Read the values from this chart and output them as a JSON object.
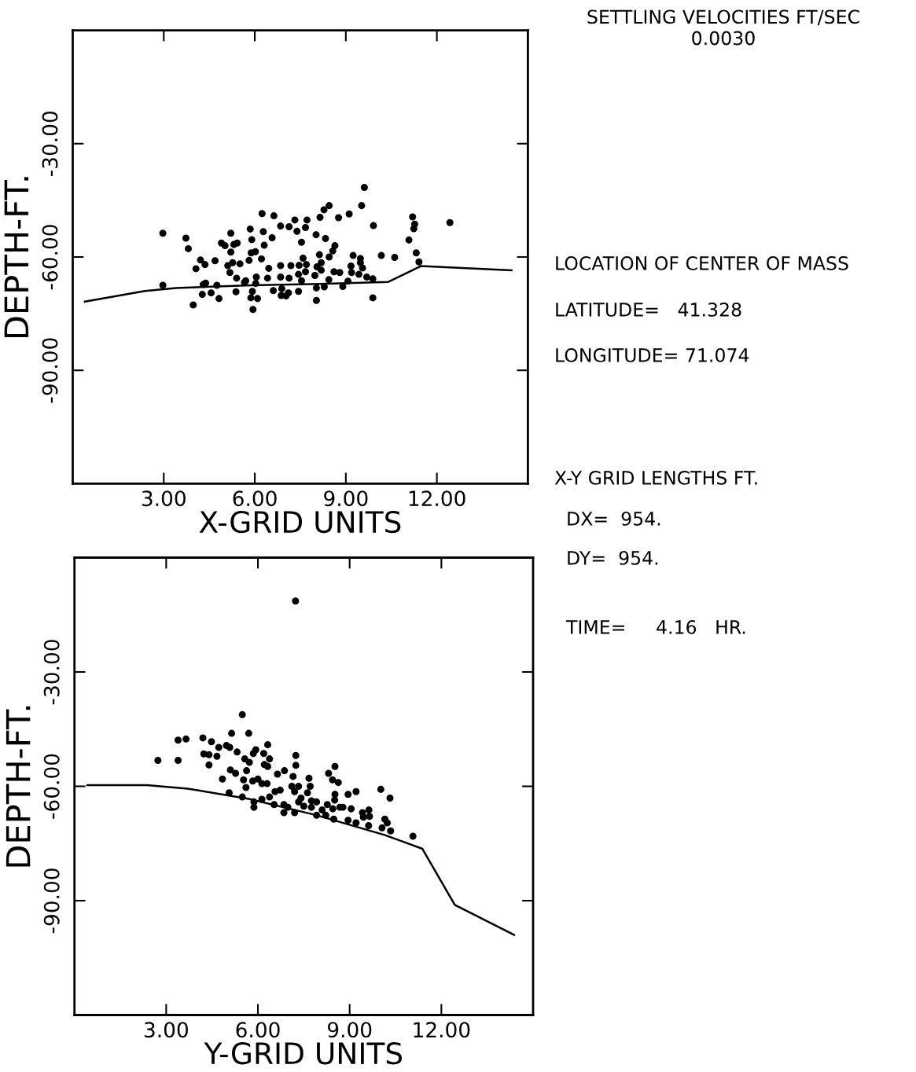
{
  "chart_data": [
    {
      "type": "scatter",
      "xlabel": "X-GRID UNITS",
      "ylabel": "DEPTH-FT.",
      "xlim": [
        0,
        15
      ],
      "ylim": [
        -120,
        0
      ],
      "xticks": [
        {
          "value": 3,
          "label": "3.00"
        },
        {
          "value": 6,
          "label": "6.00"
        },
        {
          "value": 9,
          "label": "9.00"
        },
        {
          "value": 12,
          "label": "12.00"
        }
      ],
      "yticks": [
        {
          "value": -90,
          "label": "-90.00"
        },
        {
          "value": -60,
          "label": "-60.00"
        },
        {
          "value": -30,
          "label": "-30.00"
        }
      ],
      "series": [
        {
          "type": "scatter",
          "marker": "circle",
          "color": "#000000",
          "x": [
            2.97,
            3.73,
            3.81,
            2.97,
            4.21,
            4.36,
            4.06,
            4.69,
            4.9,
            5.02,
            5.21,
            5.31,
            5.42,
            5.21,
            5.11,
            5.27,
            5.51,
            5.18,
            5.4,
            4.38,
            4.3,
            4.75,
            4.27,
            4.56,
            4.82,
            3.97,
            5.38,
            5.7,
            5.66,
            5.85,
            5.9,
            5.88,
            6.02,
            6.28,
            6.31,
            6.22,
            5.81,
            6.24,
            6.63,
            6.57,
            6.46,
            6.42,
            6.05,
            6.03,
            5.92,
            5.87,
            6.09,
            5.94,
            6.61,
            6.85,
            7.13,
            7.32,
            7.39,
            7.67,
            7.72,
            7.54,
            6.85,
            7.19,
            7.46,
            7.59,
            7.7,
            7.67,
            6.85,
            7.13,
            7.44,
            7.54,
            6.89,
            6.87,
            7.11,
            7.03,
            7.44,
            8.02,
            8.15,
            8.28,
            8.45,
            8.33,
            8.76,
            9.11,
            8.64,
            8.57,
            8.13,
            8.45,
            8.05,
            8.19,
            8.19,
            7.98,
            8.61,
            8.8,
            8.44,
            8.03,
            8.29,
            8.03,
            8.9,
            9.07,
            9.24,
            9.17,
            9.19,
            9.48,
            9.48,
            9.55,
            9.43,
            9.69,
            9.89,
            9.91,
            9.52,
            9.61,
            10.17,
            10.61,
            9.89,
            11.2,
            11.27,
            11.24,
            11.08,
            11.32,
            11.41,
            12.43
          ],
          "values": [
            -53.7,
            -55.0,
            -57.8,
            -67.5,
            -60.8,
            -62.0,
            -63.1,
            -61.0,
            -56.3,
            -57.0,
            -53.7,
            -56.7,
            -56.3,
            -58.7,
            -62.3,
            -61.5,
            -61.8,
            -64.1,
            -65.6,
            -66.9,
            -67.3,
            -67.5,
            -69.9,
            -69.5,
            -71.0,
            -72.7,
            -69.2,
            -66.3,
            -66.7,
            -52.6,
            -55.4,
            -58.9,
            -58.6,
            -53.3,
            -56.9,
            -60.5,
            -60.9,
            -48.5,
            -49.1,
            -54.9,
            -63.0,
            -65.6,
            -65.3,
            -67.0,
            -69.1,
            -70.8,
            -71.0,
            -73.9,
            -68.9,
            -51.8,
            -52.0,
            -50.2,
            -53.2,
            -52.2,
            -50.2,
            -56.1,
            -62.3,
            -62.3,
            -62.2,
            -60.3,
            -62.0,
            -63.9,
            -65.3,
            -65.6,
            -64.6,
            -66.3,
            -68.4,
            -70.2,
            -69.5,
            -70.3,
            -69.1,
            -54.1,
            -49.5,
            -47.5,
            -46.4,
            -55.1,
            -49.6,
            -48.6,
            -57.0,
            -58.4,
            -59.4,
            -60.0,
            -62.6,
            -61.5,
            -63.5,
            -64.9,
            -63.9,
            -64.1,
            -66.0,
            -68.2,
            -67.9,
            -71.5,
            -67.8,
            -66.4,
            -59.6,
            -62.4,
            -64.1,
            -60.4,
            -61.5,
            -62.9,
            -64.6,
            -65.3,
            -65.8,
            -51.7,
            -46.4,
            -41.6,
            -59.6,
            -60.1,
            -70.8,
            -49.4,
            -51.3,
            -52.5,
            -55.5,
            -58.9,
            -61.3,
            -50.9
          ]
        },
        {
          "type": "line",
          "color": "#000000",
          "x": [
            0.4,
            2.38,
            3.4,
            5.88,
            8.14,
            10.4,
            11.47,
            14.46
          ],
          "values": [
            -71.8,
            -69.0,
            -68.2,
            -67.5,
            -67.1,
            -66.6,
            -62.4,
            -63.5
          ]
        }
      ]
    },
    {
      "type": "scatter",
      "xlabel": "Y-GRID UNITS",
      "ylabel": "DEPTH-FT.",
      "xlim": [
        0,
        15
      ],
      "ylim": [
        -120,
        0
      ],
      "xticks": [
        {
          "value": 3,
          "label": "3.00"
        },
        {
          "value": 6,
          "label": "6.00"
        },
        {
          "value": 9,
          "label": "9.00"
        },
        {
          "value": 12,
          "label": "12.00"
        }
      ],
      "yticks": [
        {
          "value": -90,
          "label": "-90.00"
        },
        {
          "value": -60,
          "label": "-60.00"
        },
        {
          "value": -30,
          "label": "-30.00"
        }
      ],
      "series": [
        {
          "type": "scatter",
          "marker": "circle",
          "color": "#000000",
          "x": [
            2.73,
            3.39,
            3.39,
            3.65,
            4.2,
            4.48,
            4.72,
            4.97,
            5.08,
            4.23,
            4.4,
            4.66,
            4.4,
            5.32,
            5.14,
            5.7,
            5.49,
            5.57,
            5.72,
            5.85,
            5.93,
            6.19,
            6.32,
            6.38,
            6.21,
            6.32,
            5.1,
            5.27,
            5.63,
            4.84,
            5.53,
            5.83,
            6.0,
            5.61,
            6.13,
            6.3,
            5.06,
            5.49,
            5.87,
            5.87,
            6.13,
            6.38,
            6.56,
            6.73,
            6.53,
            6.85,
            6.98,
            6.85,
            6.64,
            6.87,
            7.24,
            7.24,
            7.15,
            7.11,
            7.33,
            7.2,
            7.41,
            7.33,
            7.2,
            7.5,
            7.67,
            7.71,
            7.62,
            7.75,
            7.92,
            7.75,
            7.92,
            8.1,
            8.27,
            8.22,
            8.48,
            8.31,
            8.44,
            8.52,
            8.63,
            8.52,
            8.51,
            8.45,
            8.68,
            8.78,
            8.95,
            9.21,
            9.05,
            8.95,
            9.21,
            9.42,
            9.45,
            9.63,
            9.65,
            9.62,
            10.02,
            10.32,
            10.15,
            10.23,
            10.06,
            10.34,
            11.07,
            7.23
          ],
          "values": [
            -53.2,
            -53.2,
            -47.9,
            -47.6,
            -47.3,
            -48.3,
            -49.8,
            -49.3,
            -49.8,
            -51.5,
            -51.7,
            -52.1,
            -54.4,
            -51.0,
            -46.1,
            -46.1,
            -41.2,
            -52.8,
            -53.7,
            -51.4,
            -50.4,
            -51.4,
            -49.1,
            -52.8,
            -54.3,
            -54.8,
            -55.7,
            -56.6,
            -55.9,
            -58.1,
            -58.3,
            -58.6,
            -58.1,
            -60.3,
            -59.3,
            -59.3,
            -61.7,
            -62.8,
            -64.1,
            -65.5,
            -63.4,
            -62.8,
            -61.4,
            -61.0,
            -64.8,
            -64.8,
            -65.5,
            -66.9,
            -56.8,
            -55.9,
            -51.9,
            -54.5,
            -57.4,
            -60.0,
            -60.0,
            -61.4,
            -63.1,
            -64.1,
            -66.9,
            -65.2,
            -57.9,
            -60.0,
            -61.7,
            -63.8,
            -64.1,
            -65.5,
            -67.6,
            -66.2,
            -64.8,
            -67.6,
            -68.6,
            -56.6,
            -58.3,
            -54.8,
            -59.0,
            -62.1,
            -63.6,
            -65.9,
            -65.5,
            -65.5,
            -62.1,
            -61.4,
            -65.9,
            -68.9,
            -69.6,
            -66.9,
            -68.1,
            -66.2,
            -67.9,
            -70.3,
            -60.8,
            -63.1,
            -68.6,
            -69.6,
            -70.9,
            -71.7,
            -73.1,
            -11.4
          ]
        },
        {
          "type": "line",
          "color": "#000000",
          "x": [
            0.42,
            2.37,
            3.7,
            5.7,
            7.93,
            10.16,
            11.38,
            12.44,
            14.38
          ],
          "values": [
            -59.7,
            -59.7,
            -60.6,
            -63.3,
            -67.6,
            -72.8,
            -76.4,
            -91.1,
            -99.0
          ]
        }
      ]
    },
    {
      "type": "other",
      "title": "SETTLING VELOCITIES FT/SEC",
      "subtitle": "0.0030",
      "annotations": [
        "LOCATION OF CENTER OF MASS",
        "LATITUDE=   41.328",
        "LONGITUDE= 71.074",
        "X-Y GRID LENGTHS FT.",
        "  DX=  954.",
        "  DY=  954.",
        "  TIME=     4.16   HR."
      ]
    }
  ]
}
